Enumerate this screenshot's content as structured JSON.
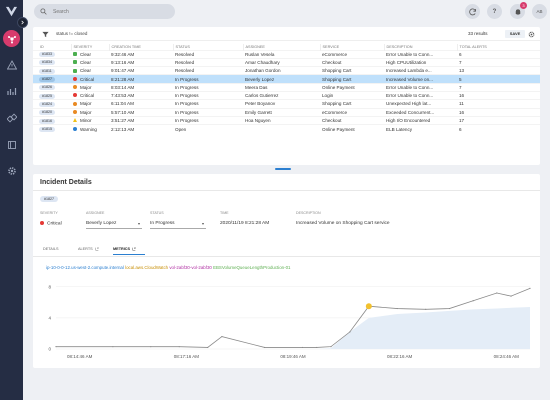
{
  "search": {
    "placeholder": "Search"
  },
  "user": {
    "initials": "AB"
  },
  "notifications": {
    "count": "3"
  },
  "filter": {
    "text": "status != closed",
    "results": "33 results",
    "save_label": "SAVE"
  },
  "table": {
    "headers": [
      "ID",
      "SEVERITY",
      "CREATION TIME",
      "STATUS",
      "ASSIGNEE",
      "SERVICE",
      "DESCRIPTION",
      "TOTAL ALERTS"
    ],
    "rows": [
      {
        "id": "#1833",
        "severity": "Clear",
        "sev": "clear",
        "time": "9:32:46 AM",
        "status": "Resolved",
        "assignee": "Ruslan Vesela",
        "service": "eCommerce",
        "description": "Error Unable to Conn...",
        "alerts": "6"
      },
      {
        "id": "#1834",
        "severity": "Clear",
        "sev": "clear",
        "time": "9:13:16 AM",
        "status": "Resolved",
        "assignee": "Amar Chaudhary",
        "service": "Checkout",
        "description": "High CPUUtilization",
        "alerts": "7"
      },
      {
        "id": "#1811",
        "severity": "Clear",
        "sev": "clear",
        "time": "9:01:47 AM",
        "status": "Resolved",
        "assignee": "Jonathan Gordon",
        "service": "Shopping Cart",
        "description": "Increased Lambda e...",
        "alerts": "13"
      },
      {
        "id": "#1827",
        "severity": "Critical",
        "sev": "critical",
        "time": "8:21:28 AM",
        "status": "In Progress",
        "assignee": "Beverly Lopez",
        "service": "Shopping Cart",
        "description": "Increased Volume on...",
        "alerts": "5"
      },
      {
        "id": "#1826",
        "severity": "Major",
        "sev": "major",
        "time": "8:03:14 AM",
        "status": "In Progress",
        "assignee": "Meera Das",
        "service": "Online Payment",
        "description": "Error Unable to Conn...",
        "alerts": "7"
      },
      {
        "id": "#1825",
        "severity": "Critical",
        "sev": "critical",
        "time": "7:43:53 AM",
        "status": "In Progress",
        "assignee": "Carlos Gutierrez",
        "service": "Login",
        "description": "Error Unable to Conn...",
        "alerts": "16"
      },
      {
        "id": "#1824",
        "severity": "Major",
        "sev": "major",
        "time": "6:11:04 AM",
        "status": "In Progress",
        "assignee": "Peter Boyanov",
        "service": "Shopping Cart",
        "description": "Unexpected High lat...",
        "alerts": "11"
      },
      {
        "id": "#1820",
        "severity": "Major",
        "sev": "major",
        "time": "5:57:10 AM",
        "status": "In Progress",
        "assignee": "Emily Garrett",
        "service": "eCommerce",
        "description": "Exceeded Concurrent...",
        "alerts": "16"
      },
      {
        "id": "#1816",
        "severity": "Minor",
        "sev": "minor",
        "time": "3:51:27 AM",
        "status": "In Progress",
        "assignee": "Hoa Nguyen",
        "service": "Checkout",
        "description": "High I/O Encountered",
        "alerts": "17"
      },
      {
        "id": "#1815",
        "severity": "Warning",
        "sev": "warning",
        "time": "2:12:13 AM",
        "status": "Open",
        "assignee": "",
        "service": "Online Payment",
        "description": "ELB Latency",
        "alerts": "6"
      }
    ],
    "selected_index": 3
  },
  "detail": {
    "title": "Incident Details",
    "id": "#1827",
    "labels": {
      "severity": "SEVERITY",
      "assignee": "ASSIGNEE",
      "status": "STATUS",
      "time": "TIME",
      "description": "DESCRIPTION"
    },
    "severity": "Critical",
    "assignee": "Beverly Lopez",
    "status": "In Progress",
    "time": "2020/11/19 8:21:28 AM",
    "description": "Increased Volume on Shopping Cart service",
    "tabs": [
      "DETAILS",
      "ALERTS",
      "METRICS"
    ],
    "active_tab": "METRICS"
  },
  "metric_query": {
    "host": "ip-10-0-0-12.us-west-2.compute.internal",
    "source": "local.aws.CloudWatch",
    "volume": "vol-2abf30-vol-2abf30",
    "metric": "EBSVolumeQueueLengthProduction-01"
  },
  "chart_data": {
    "type": "line",
    "x_ticks": [
      "08:14:46 AM",
      "08:17:16 AM",
      "08:19:46 AM",
      "08:22:16 AM",
      "08:24:46 AM"
    ],
    "y_ticks": [
      0,
      4,
      8
    ],
    "ylim": [
      0,
      9
    ],
    "series": [
      {
        "values": [
          0.3,
          0.3,
          0.3,
          0.3,
          0.2,
          1.6,
          0.2,
          0.2,
          0.2,
          0.3,
          2.2,
          5.5,
          5.2,
          5.1,
          5.2,
          6.2,
          7.2,
          6.8,
          7.8
        ]
      },
      {
        "values": [
          0,
          0,
          0,
          0,
          0,
          0,
          0,
          0,
          0,
          0.1,
          2.2,
          4.0,
          4.5,
          4.7,
          4.9,
          5.1,
          5.2,
          5.3,
          5.4
        ]
      }
    ],
    "x_positions": [
      0,
      0.12,
      0.2,
      0.26,
      0.32,
      0.35,
      0.44,
      0.52,
      0.55,
      0.58,
      0.62,
      0.66,
      0.72,
      0.78,
      0.83,
      0.88,
      0.93,
      0.96,
      1.0
    ],
    "highlight_index": 11,
    "colors": {
      "line": "#8a8a8a",
      "area": "#e4edf7",
      "highlight": "#f2c12e"
    }
  },
  "colors": {
    "accent": "#2b7fd0",
    "sidebar": "#252d44",
    "brand": "#d73b6d",
    "selected_row": "#bfe0fb"
  }
}
